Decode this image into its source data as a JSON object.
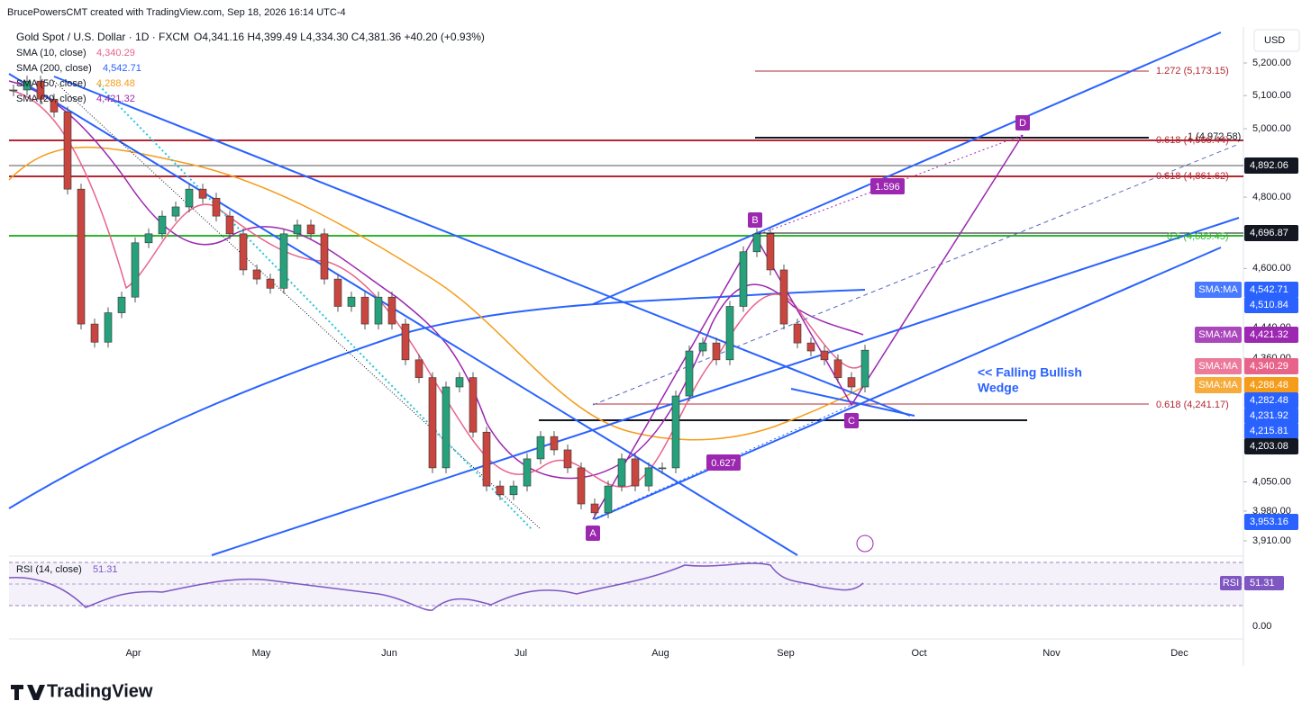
{
  "header": {
    "credit": "BrucePowersCMT created with TradingView.com, Sep 18, 2026 16:14 UTC-4",
    "symbol": "Gold Spot / U.S. Dollar · 1D · FXCM",
    "ohlc": "O4,341.16  H4,399.49  L4,334.30  C4,381.36  +40.20 (+0.93%)",
    "currency": "USD"
  },
  "indicators": [
    {
      "name": "SMA (10, close)",
      "value": "4,340.29",
      "color": "#e8638a"
    },
    {
      "name": "SMA (200, close)",
      "value": "4,542.71",
      "color": "#2962ff"
    },
    {
      "name": "SMA (50, close)",
      "value": "4,288.48",
      "color": "#f59c1a"
    },
    {
      "name": "SMA (20, close)",
      "value": "4,421.32",
      "color": "#9c27b0"
    }
  ],
  "price_axis": {
    "log": true,
    "ticks": [
      {
        "value": 5200,
        "label": "5,200.00"
      },
      {
        "value": 5100,
        "label": "5,100.00"
      },
      {
        "value": 5000,
        "label": "5,000.00"
      },
      {
        "value": 4800,
        "label": "4,800.00"
      },
      {
        "value": 4600,
        "label": "4,600.00"
      },
      {
        "value": 4440,
        "label": "4,440.00"
      },
      {
        "value": 4360,
        "label": "4,360.00"
      },
      {
        "value": 4050,
        "label": "4,050.00"
      },
      {
        "value": 3980,
        "label": "3,980.00"
      },
      {
        "value": 3910,
        "label": "3,910.00"
      }
    ]
  },
  "badges": [
    {
      "tag": "",
      "label": "4,892.06",
      "color": "#131722"
    },
    {
      "tag": "",
      "label": "4,696.87",
      "color": "#131722"
    },
    {
      "tag": "SMA:MA",
      "label": "4,542.71",
      "color": "#2962ff"
    },
    {
      "tag": "",
      "label": "4,510.84",
      "color": "#2962ff"
    },
    {
      "tag": "SMA:MA",
      "label": "4,421.32",
      "color": "#9c27b0"
    },
    {
      "tag": "SMA:MA",
      "label": "4,340.29",
      "color": "#e8638a"
    },
    {
      "tag": "SMA:MA",
      "label": "4,288.48",
      "color": "#f59c1a"
    },
    {
      "tag": "",
      "label": "4,282.48",
      "color": "#2962ff"
    },
    {
      "tag": "",
      "label": "4,231.92",
      "color": "#2962ff"
    },
    {
      "tag": "",
      "label": "4,215.81",
      "color": "#2962ff"
    },
    {
      "tag": "",
      "label": "4,203.08",
      "color": "#131722"
    },
    {
      "tag": "",
      "label": "3,953.16",
      "color": "#2962ff"
    }
  ],
  "months": [
    "Apr",
    "May",
    "Jun",
    "Jul",
    "Aug",
    "Sep",
    "Oct",
    "Nov",
    "Dec"
  ],
  "fib_labels": [
    "1.272 (5,173.15)",
    "1 (4,972.58)",
    "0.618 (4,966.44)",
    "0.618 (4,861.62)",
    "0.5 (4,689.45)",
    "0.618 (4,241.17)"
  ],
  "pattern_points": [
    "A",
    "B",
    "C",
    "D"
  ],
  "ratios": [
    "1.596",
    "0.627"
  ],
  "annotation": [
    "<< Falling Bullish",
    "Wedge"
  ],
  "rsi": {
    "name": "RSI (14, close)",
    "value": "51.31",
    "tag": "RSI",
    "zero": "0.00"
  },
  "candles": {
    "closes": [
      5117,
      5144,
      5089,
      5050,
      4823,
      4450,
      4402,
      4480,
      4522,
      4671,
      4696,
      4746,
      4772,
      4823,
      4797,
      4746,
      4696,
      4596,
      4571,
      4546,
      4696,
      4721,
      4696,
      4571,
      4497,
      4522,
      4450,
      4522,
      4450,
      4356,
      4310,
      4084,
      4286,
      4310,
      4172,
      4040,
      4019,
      4040,
      4106,
      4161,
      4128,
      4084,
      3997,
      3976,
      4040,
      4106,
      4040,
      4084,
      4084,
      4263,
      4379,
      4400,
      4356,
      4497,
      4646,
      4696,
      4596,
      4450,
      4400,
      4379,
      4356,
      4310,
      4286,
      4381
    ]
  },
  "logo": "TradingView"
}
